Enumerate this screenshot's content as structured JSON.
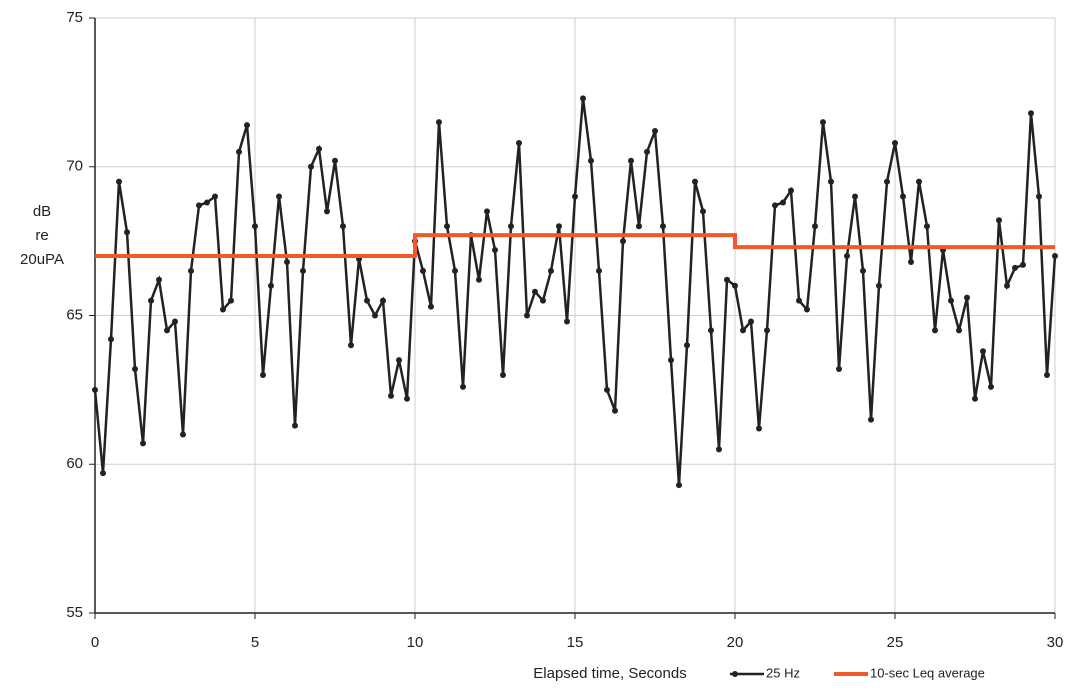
{
  "chart_data": {
    "type": "line",
    "xlabel": "Elapsed time, Seconds",
    "ylabel": [
      "dB",
      "re",
      "20uPA"
    ],
    "xlim": [
      0,
      30
    ],
    "xticks": [
      0,
      5,
      10,
      15,
      20,
      25,
      30
    ],
    "ylim": [
      55,
      75
    ],
    "yticks": [
      55,
      60,
      65,
      70,
      75
    ],
    "grid": true,
    "series": [
      {
        "name": "25 Hz",
        "color": "#222222",
        "markers": true,
        "x": [
          0,
          0.25,
          0.5,
          0.75,
          1,
          1.25,
          1.5,
          1.75,
          2,
          2.25,
          2.5,
          2.75,
          3,
          3.25,
          3.5,
          3.75,
          4,
          4.25,
          4.5,
          4.75,
          5,
          5.25,
          5.5,
          5.75,
          6,
          6.25,
          6.5,
          6.75,
          7,
          7.25,
          7.5,
          7.75,
          8,
          8.25,
          8.5,
          8.75,
          9,
          9.25,
          9.5,
          9.75,
          10,
          10.25,
          10.5,
          10.75,
          11,
          11.25,
          11.5,
          11.75,
          12,
          12.25,
          12.5,
          12.75,
          13,
          13.25,
          13.5,
          13.75,
          14,
          14.25,
          14.5,
          14.75,
          15,
          15.25,
          15.5,
          15.75,
          16,
          16.25,
          16.5,
          16.75,
          17,
          17.25,
          17.5,
          17.75,
          18,
          18.25,
          18.5,
          18.75,
          19,
          19.25,
          19.5,
          19.75,
          20,
          20.25,
          20.5,
          20.75,
          21,
          21.25,
          21.5,
          21.75,
          22,
          22.25,
          22.5,
          22.75,
          23,
          23.25,
          23.5,
          23.75,
          24,
          24.25,
          24.5,
          24.75,
          25,
          25.25,
          25.5,
          25.75,
          26,
          26.25,
          26.5,
          26.75,
          27,
          27.25,
          27.5,
          27.75,
          28,
          28.25,
          28.5,
          28.75,
          29,
          29.25,
          29.5,
          29.75,
          30
        ],
        "values": [
          62.5,
          59.7,
          64.2,
          69.5,
          67.8,
          63.2,
          60.7,
          65.5,
          66.2,
          64.5,
          64.8,
          61,
          66.5,
          68.7,
          68.8,
          69,
          65.2,
          65.5,
          70.5,
          71.4,
          68,
          63,
          66,
          69,
          66.8,
          61.3,
          66.5,
          70,
          70.6,
          68.5,
          70.2,
          68,
          64,
          66.9,
          65.5,
          65,
          65.5,
          62.3,
          63.5,
          62.2,
          67.5,
          66.5,
          65.3,
          71.5,
          68,
          66.5,
          62.6,
          67.7,
          66.2,
          68.5,
          67.2,
          63,
          68,
          70.8,
          65,
          65.8,
          65.5,
          66.5,
          68,
          64.8,
          69,
          72.3,
          70.2,
          66.5,
          62.5,
          61.8,
          67.5,
          70.2,
          68,
          70.5,
          71.2,
          68,
          63.5,
          59.3,
          64,
          69.5,
          68.5,
          64.5,
          60.5,
          66.2,
          66,
          64.5,
          64.8,
          61.2,
          64.5,
          68.7,
          68.8,
          69.2,
          65.5,
          65.2,
          68,
          71.5,
          69.5,
          63.2,
          67,
          69,
          66.5,
          61.5,
          66,
          69.5,
          70.8,
          69,
          66.8,
          69.5,
          68,
          64.5,
          67.2,
          65.5,
          64.5,
          65.6,
          62.2,
          63.8,
          62.6,
          68.2,
          66,
          66.6,
          66.7,
          71.8,
          69,
          63,
          67
        ]
      },
      {
        "name": "10-sec Leq average",
        "color": "#f05a28",
        "markers": false,
        "x": [
          0,
          10,
          10,
          20,
          20,
          30
        ],
        "values": [
          67,
          67,
          67.7,
          67.7,
          67.3,
          67.3
        ]
      }
    ]
  }
}
